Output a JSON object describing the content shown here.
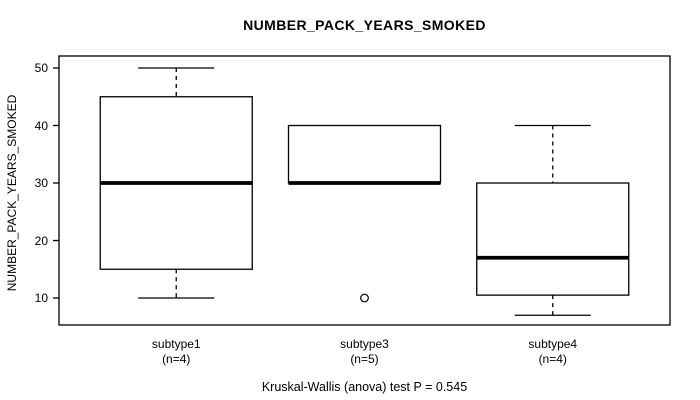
{
  "chart_data": {
    "type": "boxplot",
    "title": "NUMBER_PACK_YEARS_SMOKED",
    "ylabel": "NUMBER_PACK_YEARS_SMOKED",
    "xlabel": "",
    "yticks": [
      10,
      20,
      30,
      40,
      50
    ],
    "ylim": [
      5,
      52
    ],
    "grid": false,
    "legend": "none",
    "annotation": "Kruskal-Wallis (anova) test P = 0.545",
    "groups": [
      {
        "label": "subtype1",
        "sublabel": "(n=4)",
        "n": 4,
        "whisker_low": 10,
        "q1": 15,
        "median": 30,
        "q3": 45,
        "whisker_high": 50,
        "outliers": []
      },
      {
        "label": "subtype3",
        "sublabel": "(n=5)",
        "n": 5,
        "whisker_low": 30,
        "q1": 30,
        "median": 30,
        "q3": 40,
        "whisker_high": 40,
        "outliers": [
          10
        ]
      },
      {
        "label": "subtype4",
        "sublabel": "(n=4)",
        "n": 4,
        "whisker_low": 7,
        "q1": 10.5,
        "median": 17,
        "q3": 30,
        "whisker_high": 40,
        "outliers": []
      }
    ],
    "colors": {
      "line": "#000000",
      "box_fill": "#ffffff",
      "background": "#ffffff"
    }
  }
}
